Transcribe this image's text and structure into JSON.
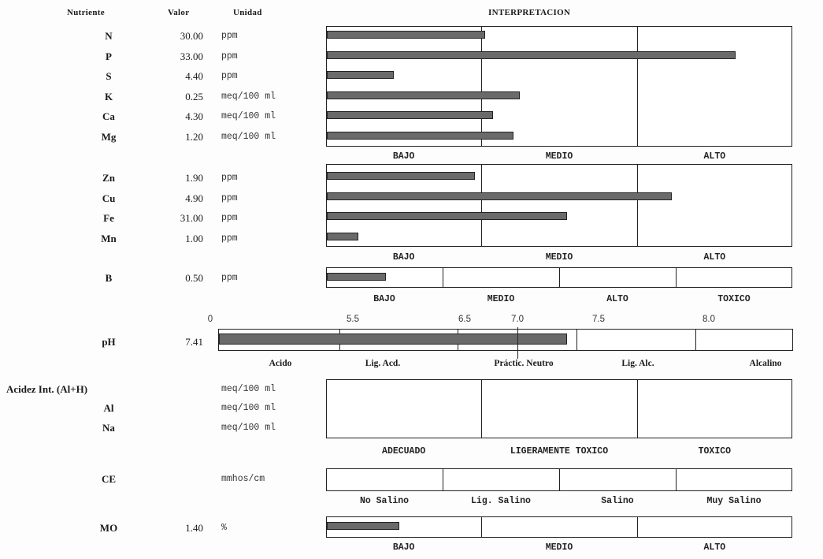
{
  "chart_data": {
    "type": "bar",
    "headers": {
      "nutrient": "Nutriente",
      "value": "Valor",
      "unit": "Unidad",
      "interpretation": "INTERPRETACION"
    },
    "macro": [
      {
        "name": "N",
        "value": "30.00",
        "unit": "ppm",
        "level": 0.34
      },
      {
        "name": "P",
        "value": "33.00",
        "unit": "ppm",
        "level": 0.877
      },
      {
        "name": "S",
        "value": "4.40",
        "unit": "ppm",
        "level": 0.144
      },
      {
        "name": "K",
        "value": "0.25",
        "unit": "meq/100 ml",
        "level": 0.414
      },
      {
        "name": "Ca",
        "value": "4.30",
        "unit": "meq/100 ml",
        "level": 0.357
      },
      {
        "name": "Mg",
        "value": "1.20",
        "unit": "meq/100 ml",
        "level": 0.401
      }
    ],
    "macro_categories": [
      "BAJO",
      "MEDIO",
      "ALTO"
    ],
    "micro": [
      {
        "name": "Zn",
        "value": "1.90",
        "unit": "ppm",
        "level": 0.318
      },
      {
        "name": "Cu",
        "value": "4.90",
        "unit": "ppm",
        "level": 0.74
      },
      {
        "name": "Fe",
        "value": "31.00",
        "unit": "ppm",
        "level": 0.515
      },
      {
        "name": "Mn",
        "value": "1.00",
        "unit": "ppm",
        "level": 0.068
      }
    ],
    "micro_categories": [
      "BAJO",
      "MEDIO",
      "ALTO"
    ],
    "boron": {
      "name": "B",
      "value": "0.50",
      "unit": "ppm",
      "level": 0.127
    },
    "boron_categories": [
      "BAJO",
      "MEDIO",
      "ALTO",
      "TOXICO"
    ],
    "ph": {
      "name": "pH",
      "value": "7.41",
      "ticks": [
        "0",
        "5.5",
        "6.5",
        "7.0",
        "7.5",
        "8.0"
      ],
      "value_fraction": 0.606,
      "categories": [
        "Acido",
        "Lig. Acd.",
        "Práctic. Neutro",
        "Lig. Alc.",
        "Alcalino"
      ]
    },
    "acidity": [
      {
        "name": "Acidez Int. (Al+H)",
        "unit": "meq/100 ml"
      },
      {
        "name": "Al",
        "unit": "meq/100 ml"
      },
      {
        "name": "Na",
        "unit": "meq/100 ml"
      }
    ],
    "acidity_categories": [
      "ADECUADO",
      "LIGERAMENTE TOXICO",
      "TOXICO"
    ],
    "ce": {
      "name": "CE",
      "unit": "mmhos/cm"
    },
    "ce_categories": [
      "No Salino",
      "Lig. Salino",
      "Salino",
      "Muy Salino"
    ],
    "mo": {
      "name": "MO",
      "value": "1.40",
      "unit": "%",
      "level": 0.156
    },
    "mo_categories": [
      "BAJO",
      "MEDIO",
      "ALTO"
    ],
    "bar_color": "#6a6a6a"
  }
}
